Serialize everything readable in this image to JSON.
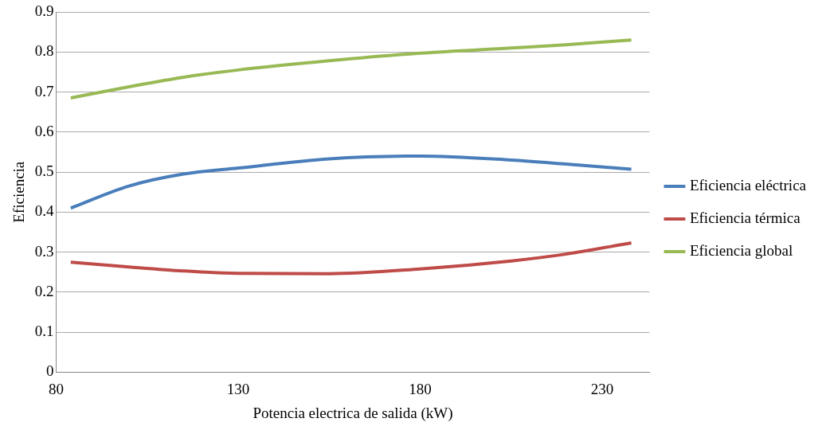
{
  "chart_data": {
    "type": "line",
    "xlabel": "Potencia electrica de salida (kW)",
    "ylabel": "Eficiencia",
    "x": [
      84,
      100,
      115,
      130,
      155,
      180,
      205,
      220,
      238
    ],
    "series": [
      {
        "name": "Eficiencia eléctrica",
        "color": "#4a7ebb",
        "values": [
          0.41,
          0.465,
          0.495,
          0.51,
          0.533,
          0.54,
          0.53,
          0.52,
          0.507
        ]
      },
      {
        "name": "Eficiencia térmica",
        "color": "#be4b48",
        "values": [
          0.275,
          0.263,
          0.253,
          0.247,
          0.246,
          0.258,
          0.278,
          0.295,
          0.323
        ]
      },
      {
        "name": "Eficiencia global",
        "color": "#98b954",
        "values": [
          0.685,
          0.713,
          0.737,
          0.755,
          0.778,
          0.797,
          0.81,
          0.818,
          0.83
        ]
      }
    ],
    "xlim": [
      80,
      243
    ],
    "xticks": [
      80,
      130,
      180,
      230
    ],
    "ylim": [
      0,
      0.9
    ],
    "yticks": [
      0,
      0.1,
      0.2,
      0.3,
      0.4,
      0.5,
      0.6,
      0.7,
      0.8,
      0.9
    ],
    "grid": "y",
    "legend": "right",
    "marker": "none",
    "line_style": "solid"
  }
}
